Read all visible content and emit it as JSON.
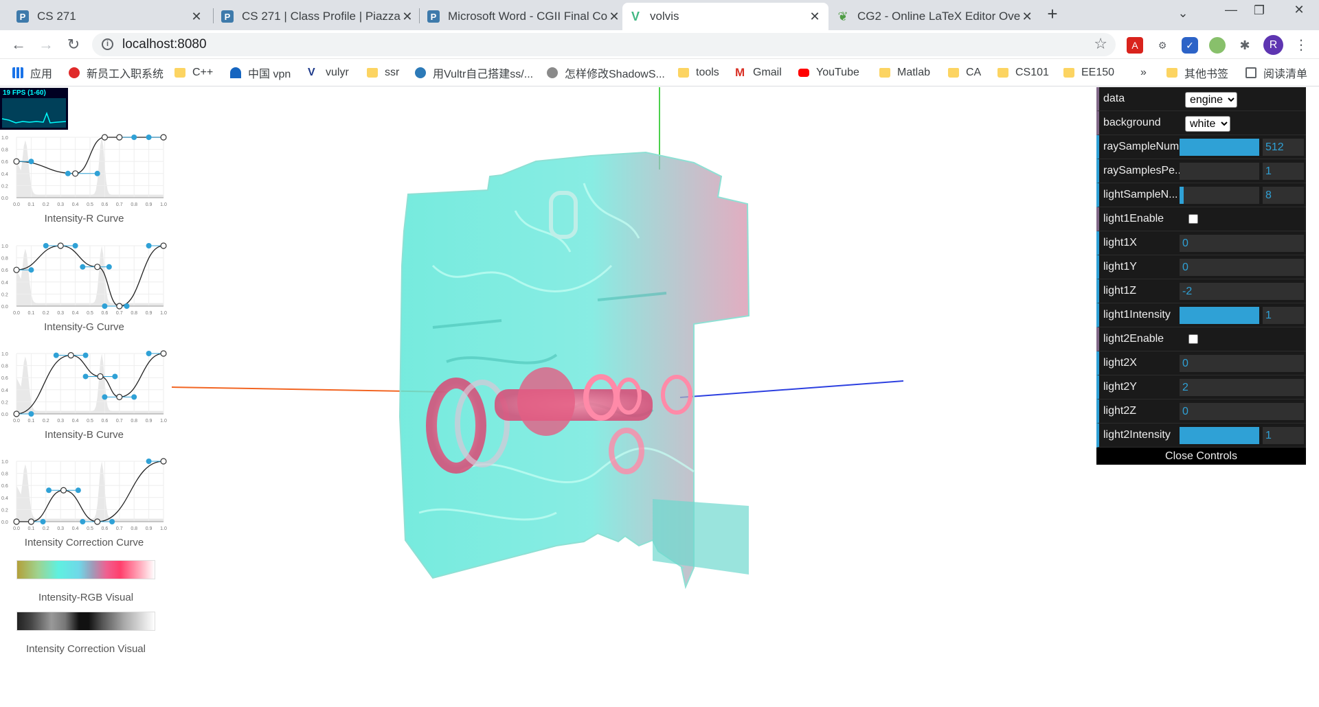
{
  "tabs": [
    {
      "title": "CS 271",
      "favicon": "piazza-icon",
      "color": "#3e7aab"
    },
    {
      "title": "CS 271 | Class Profile | Piazza",
      "favicon": "piazza-icon",
      "color": "#3e7aab"
    },
    {
      "title": "Microsoft Word - CGII Final Co",
      "favicon": "piazza-icon",
      "color": "#3e7aab"
    },
    {
      "title": "volvis",
      "favicon": "vue-icon",
      "color": "#41b883"
    },
    {
      "title": "CG2 - Online LaTeX Editor Ove",
      "favicon": "overleaf-icon",
      "color": "#4f9c45"
    }
  ],
  "active_tab_index": 3,
  "url": "localhost:8080",
  "profile_initial": "R",
  "bookmarks": [
    {
      "label": "应用",
      "icon": "apps-icon"
    },
    {
      "label": "新员工入职系统",
      "icon": "huawei-icon"
    },
    {
      "label": "C++",
      "icon": "folder-icon"
    },
    {
      "label": "中国 vpn",
      "icon": "vpn-icon"
    },
    {
      "label": "vulyr",
      "icon": "vultr-icon"
    },
    {
      "label": "ssr",
      "icon": "folder-icon"
    },
    {
      "label": "用Vultr自己搭建ss/...",
      "icon": "globe-icon"
    },
    {
      "label": "怎样修改ShadowS...",
      "icon": "zhihu-icon"
    },
    {
      "label": "tools",
      "icon": "folder-icon"
    },
    {
      "label": "Gmail",
      "icon": "gmail-icon"
    },
    {
      "label": "YouTube",
      "icon": "youtube-icon"
    },
    {
      "label": "Matlab",
      "icon": "folder-icon"
    },
    {
      "label": "CA",
      "icon": "folder-icon"
    },
    {
      "label": "CS101",
      "icon": "folder-icon"
    },
    {
      "label": "EE150",
      "icon": "folder-icon"
    }
  ],
  "bookmarks_overflow": "»",
  "other_bookmarks": "其他书签",
  "reading_list": "阅读清单",
  "fps_label": "19 FPS (1-60)",
  "curve_ticks": [
    "0.0",
    "0.1",
    "0.2",
    "0.3",
    "0.4",
    "0.5",
    "0.6",
    "0.7",
    "0.8",
    "0.9",
    "1.0"
  ],
  "curve_yticks": [
    "1.0",
    "0.8",
    "0.6",
    "0.4",
    "0.2",
    "0.0"
  ],
  "curves": [
    {
      "caption": "Intensity-R Curve",
      "points": [
        [
          0.0,
          0.6
        ],
        [
          0.4,
          0.4
        ],
        [
          0.6,
          1.0
        ],
        [
          0.7,
          1.0
        ],
        [
          1.0,
          1.0
        ]
      ],
      "handles": [
        [
          0.1,
          0.6
        ],
        [
          0.35,
          0.4
        ],
        [
          0.55,
          0.4
        ],
        [
          0.6,
          1.0
        ],
        [
          0.8,
          1.0
        ],
        [
          0.9,
          1.0
        ]
      ]
    },
    {
      "caption": "Intensity-G Curve",
      "points": [
        [
          0.0,
          0.6
        ],
        [
          0.3,
          1.0
        ],
        [
          0.55,
          0.65
        ],
        [
          0.7,
          0.0
        ],
        [
          1.0,
          1.0
        ]
      ],
      "handles": [
        [
          0.1,
          0.6
        ],
        [
          0.2,
          1.0
        ],
        [
          0.4,
          1.0
        ],
        [
          0.45,
          0.65
        ],
        [
          0.63,
          0.65
        ],
        [
          0.6,
          0.0
        ],
        [
          0.75,
          0.0
        ],
        [
          0.9,
          1.0
        ]
      ]
    },
    {
      "caption": "Intensity-B Curve",
      "points": [
        [
          0.0,
          0.0
        ],
        [
          0.37,
          0.97
        ],
        [
          0.57,
          0.62
        ],
        [
          0.7,
          0.28
        ],
        [
          1.0,
          1.0
        ]
      ],
      "handles": [
        [
          0.1,
          0.0
        ],
        [
          0.27,
          0.97
        ],
        [
          0.47,
          0.97
        ],
        [
          0.47,
          0.62
        ],
        [
          0.67,
          0.62
        ],
        [
          0.6,
          0.28
        ],
        [
          0.8,
          0.28
        ],
        [
          0.9,
          1.0
        ]
      ]
    },
    {
      "caption": "Intensity Correction Curve",
      "points": [
        [
          0.0,
          0.0
        ],
        [
          0.1,
          0.0
        ],
        [
          0.32,
          0.52
        ],
        [
          0.55,
          0.0
        ],
        [
          1.0,
          1.0
        ]
      ],
      "handles": [
        [
          0.0,
          0.0
        ],
        [
          0.18,
          0.0
        ],
        [
          0.22,
          0.52
        ],
        [
          0.42,
          0.52
        ],
        [
          0.45,
          0.0
        ],
        [
          0.65,
          0.0
        ],
        [
          0.9,
          1.0
        ]
      ]
    }
  ],
  "histogram_peaks": [
    0.06,
    0.58
  ],
  "rgb_visual_caption": "Intensity-RGB Visual",
  "correction_visual_caption": "Intensity Correction Visual",
  "gui": {
    "data": {
      "label": "data",
      "value": "engine"
    },
    "background": {
      "label": "background",
      "value": "white"
    },
    "raySampleNum": {
      "label": "raySampleNum",
      "value": "512",
      "fraction": 1.0
    },
    "raySamplesPe": {
      "label": "raySamplesPe...",
      "value": "1",
      "fraction": 0.0
    },
    "lightSampleN": {
      "label": "lightSampleN...",
      "value": "8",
      "fraction": 0.05
    },
    "light1Enable": {
      "label": "light1Enable",
      "checked": false
    },
    "light1X": {
      "label": "light1X",
      "value": "0"
    },
    "light1Y": {
      "label": "light1Y",
      "value": "0"
    },
    "light1Z": {
      "label": "light1Z",
      "value": "-2"
    },
    "light1Intensity": {
      "label": "light1Intensity",
      "value": "1",
      "fraction": 1.0
    },
    "light2Enable": {
      "label": "light2Enable",
      "checked": false
    },
    "light2X": {
      "label": "light2X",
      "value": "0"
    },
    "light2Y": {
      "label": "light2Y",
      "value": "2"
    },
    "light2Z": {
      "label": "light2Z",
      "value": "0"
    },
    "light2Intensity": {
      "label": "light2Intensity",
      "value": "1",
      "fraction": 1.0
    },
    "close_label": "Close Controls"
  },
  "colors": {
    "accent": "#2fa1d6",
    "point": "#2fa1d6",
    "volume_cyan": "#5fe6d6",
    "volume_red": "#e8527a"
  }
}
